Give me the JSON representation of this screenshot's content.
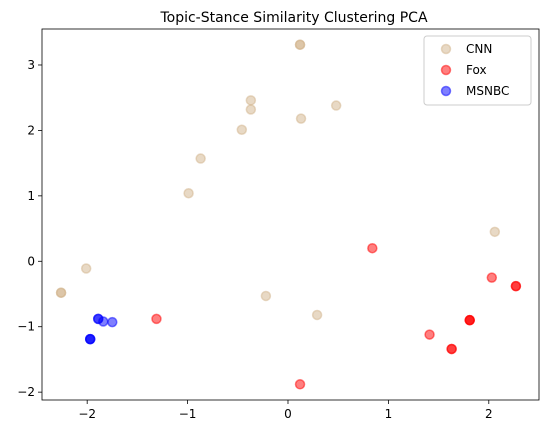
{
  "chart_data": {
    "type": "scatter",
    "title": "Topic-Stance Similarity Clustering PCA",
    "xlabel": "",
    "ylabel": "",
    "xlim": [
      -2.45,
      2.5
    ],
    "ylim": [
      -2.12,
      3.55
    ],
    "xticks": [
      -2,
      -1,
      0,
      1,
      2
    ],
    "yticks": [
      -2,
      -1,
      0,
      1,
      2,
      3
    ],
    "grid": false,
    "legend_position": "top-right",
    "series": [
      {
        "name": "CNN",
        "color": "#d2b48c",
        "points": [
          {
            "x": 0.12,
            "y": 3.31
          },
          {
            "x": 0.12,
            "y": 3.31
          },
          {
            "x": -0.37,
            "y": 2.46
          },
          {
            "x": -0.37,
            "y": 2.32
          },
          {
            "x": 0.48,
            "y": 2.38
          },
          {
            "x": 0.13,
            "y": 2.18
          },
          {
            "x": -0.46,
            "y": 2.01
          },
          {
            "x": -0.87,
            "y": 1.57
          },
          {
            "x": -0.99,
            "y": 1.04
          },
          {
            "x": 2.06,
            "y": 0.45
          },
          {
            "x": -2.01,
            "y": -0.11
          },
          {
            "x": -2.26,
            "y": -0.48
          },
          {
            "x": -2.26,
            "y": -0.48
          },
          {
            "x": -0.22,
            "y": -0.53
          },
          {
            "x": 0.29,
            "y": -0.82
          }
        ]
      },
      {
        "name": "Fox",
        "color": "#ff0000",
        "points": [
          {
            "x": 0.84,
            "y": 0.2
          },
          {
            "x": 2.03,
            "y": -0.25
          },
          {
            "x": 2.27,
            "y": -0.38
          },
          {
            "x": 2.27,
            "y": -0.38
          },
          {
            "x": -1.31,
            "y": -0.88
          },
          {
            "x": 1.81,
            "y": -0.9
          },
          {
            "x": 1.81,
            "y": -0.9
          },
          {
            "x": 1.81,
            "y": -0.9
          },
          {
            "x": 1.41,
            "y": -1.12
          },
          {
            "x": 1.63,
            "y": -1.34
          },
          {
            "x": 1.63,
            "y": -1.34
          },
          {
            "x": 0.12,
            "y": -1.88
          }
        ]
      },
      {
        "name": "MSNBC",
        "color": "#0000ff",
        "points": [
          {
            "x": -1.89,
            "y": -0.88
          },
          {
            "x": -1.89,
            "y": -0.88
          },
          {
            "x": -1.84,
            "y": -0.92
          },
          {
            "x": -1.75,
            "y": -0.93
          },
          {
            "x": -1.97,
            "y": -1.19
          },
          {
            "x": -1.97,
            "y": -1.19
          },
          {
            "x": -1.97,
            "y": -1.19
          }
        ]
      }
    ]
  }
}
